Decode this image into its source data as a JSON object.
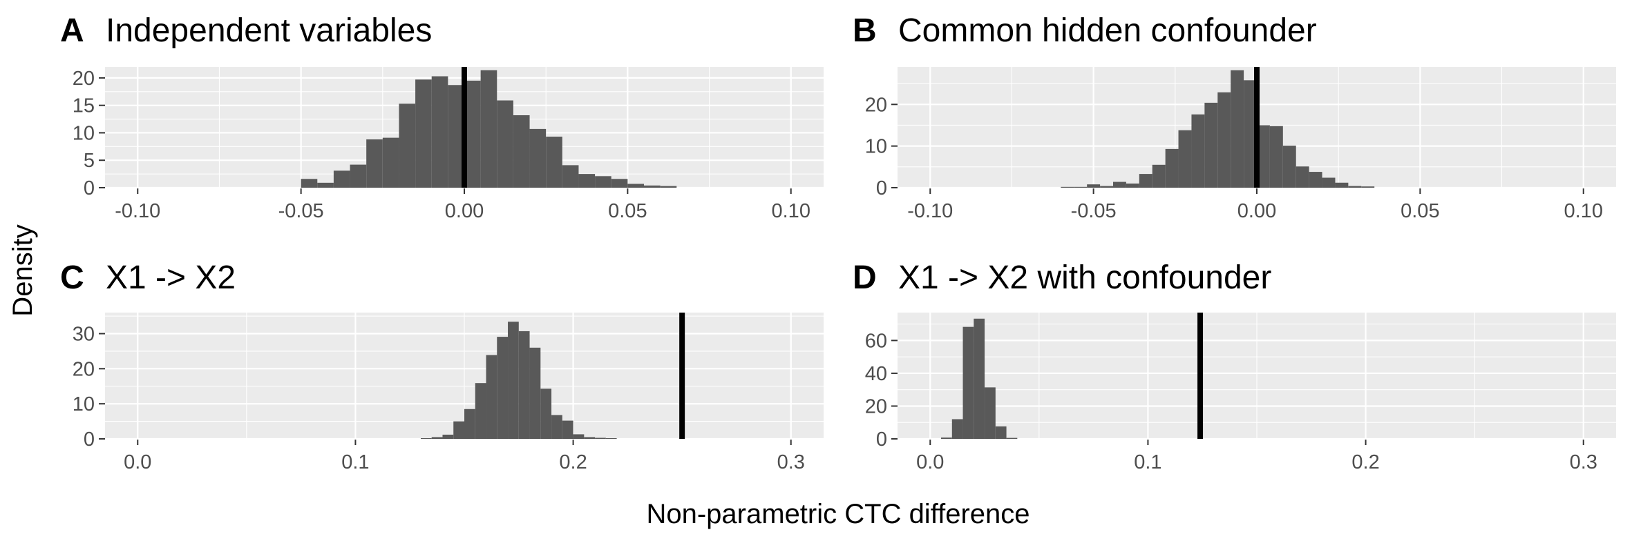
{
  "figure": {
    "xlabel": "Non-parametric CTC difference",
    "ylabel": "Density"
  },
  "chart_data": [
    {
      "type": "bar",
      "panel": "A",
      "title": "Independent variables",
      "xlim": [
        -0.11,
        0.11
      ],
      "ylim": [
        0,
        22
      ],
      "xticks": [
        -0.1,
        -0.05,
        0.0,
        0.05,
        0.1
      ],
      "xtick_labels": [
        "-0.10",
        "-0.05",
        "0.00",
        "0.05",
        "0.10"
      ],
      "yticks": [
        0,
        5,
        10,
        15,
        20
      ],
      "ytick_labels": [
        "0",
        "5",
        "10",
        "15",
        "20"
      ],
      "bin_start": -0.05,
      "bin_width": 0.005,
      "values": [
        1.6,
        0.9,
        3.1,
        4.2,
        8.8,
        9.1,
        15.3,
        19.7,
        20.3,
        18.7,
        19.5,
        21.4,
        15.9,
        13.2,
        10.7,
        9.3,
        4.1,
        2.5,
        2.1,
        1.6,
        0.7,
        0.4,
        0.3
      ],
      "reference_line": 0.0
    },
    {
      "type": "bar",
      "panel": "B",
      "title": "Common hidden confounder",
      "xlim": [
        -0.11,
        0.11
      ],
      "ylim": [
        0,
        29
      ],
      "xticks": [
        -0.1,
        -0.05,
        0.0,
        0.05,
        0.1
      ],
      "xtick_labels": [
        "-0.10",
        "-0.05",
        "0.00",
        "0.05",
        "0.10"
      ],
      "yticks": [
        0,
        10,
        20
      ],
      "ytick_labels": [
        "0",
        "10",
        "20"
      ],
      "bin_start": -0.06,
      "bin_width": 0.004,
      "values": [
        0.2,
        0.2,
        0.8,
        0.4,
        1.4,
        1.0,
        3.3,
        5.5,
        9.3,
        13.8,
        17.6,
        20.4,
        22.9,
        28.2,
        25.8,
        15.0,
        14.8,
        10.1,
        5.1,
        3.8,
        2.4,
        1.2,
        0.4,
        0.3
      ],
      "reference_line": 0.0
    },
    {
      "type": "bar",
      "panel": "C",
      "title": "X1 -> X2",
      "xlim": [
        -0.015,
        0.315
      ],
      "ylim": [
        0,
        36
      ],
      "xticks": [
        0.0,
        0.1,
        0.2,
        0.3
      ],
      "xtick_labels": [
        "0.0",
        "0.1",
        "0.2",
        "0.3"
      ],
      "yticks": [
        0,
        10,
        20,
        30
      ],
      "ytick_labels": [
        "0",
        "10",
        "20",
        "30"
      ],
      "bin_start": 0.13,
      "bin_width": 0.005,
      "values": [
        0.2,
        0.5,
        1.2,
        5.0,
        8.5,
        15.9,
        23.9,
        29.1,
        33.4,
        30.7,
        26.0,
        14.3,
        6.8,
        5.2,
        1.3,
        0.5,
        0.3,
        0.2
      ],
      "reference_line": 0.25
    },
    {
      "type": "bar",
      "panel": "D",
      "title": "X1 -> X2 with confounder",
      "xlim": [
        -0.015,
        0.315
      ],
      "ylim": [
        0,
        77
      ],
      "xticks": [
        0.0,
        0.1,
        0.2,
        0.3
      ],
      "xtick_labels": [
        "0.0",
        "0.1",
        "0.2",
        "0.3"
      ],
      "yticks": [
        0,
        20,
        40,
        60
      ],
      "ytick_labels": [
        "0",
        "20",
        "40",
        "60"
      ],
      "bin_start": 0.005,
      "bin_width": 0.005,
      "values": [
        0.8,
        12.0,
        68.3,
        73.3,
        31.4,
        7.6,
        0.6
      ],
      "reference_line": 0.124
    }
  ]
}
